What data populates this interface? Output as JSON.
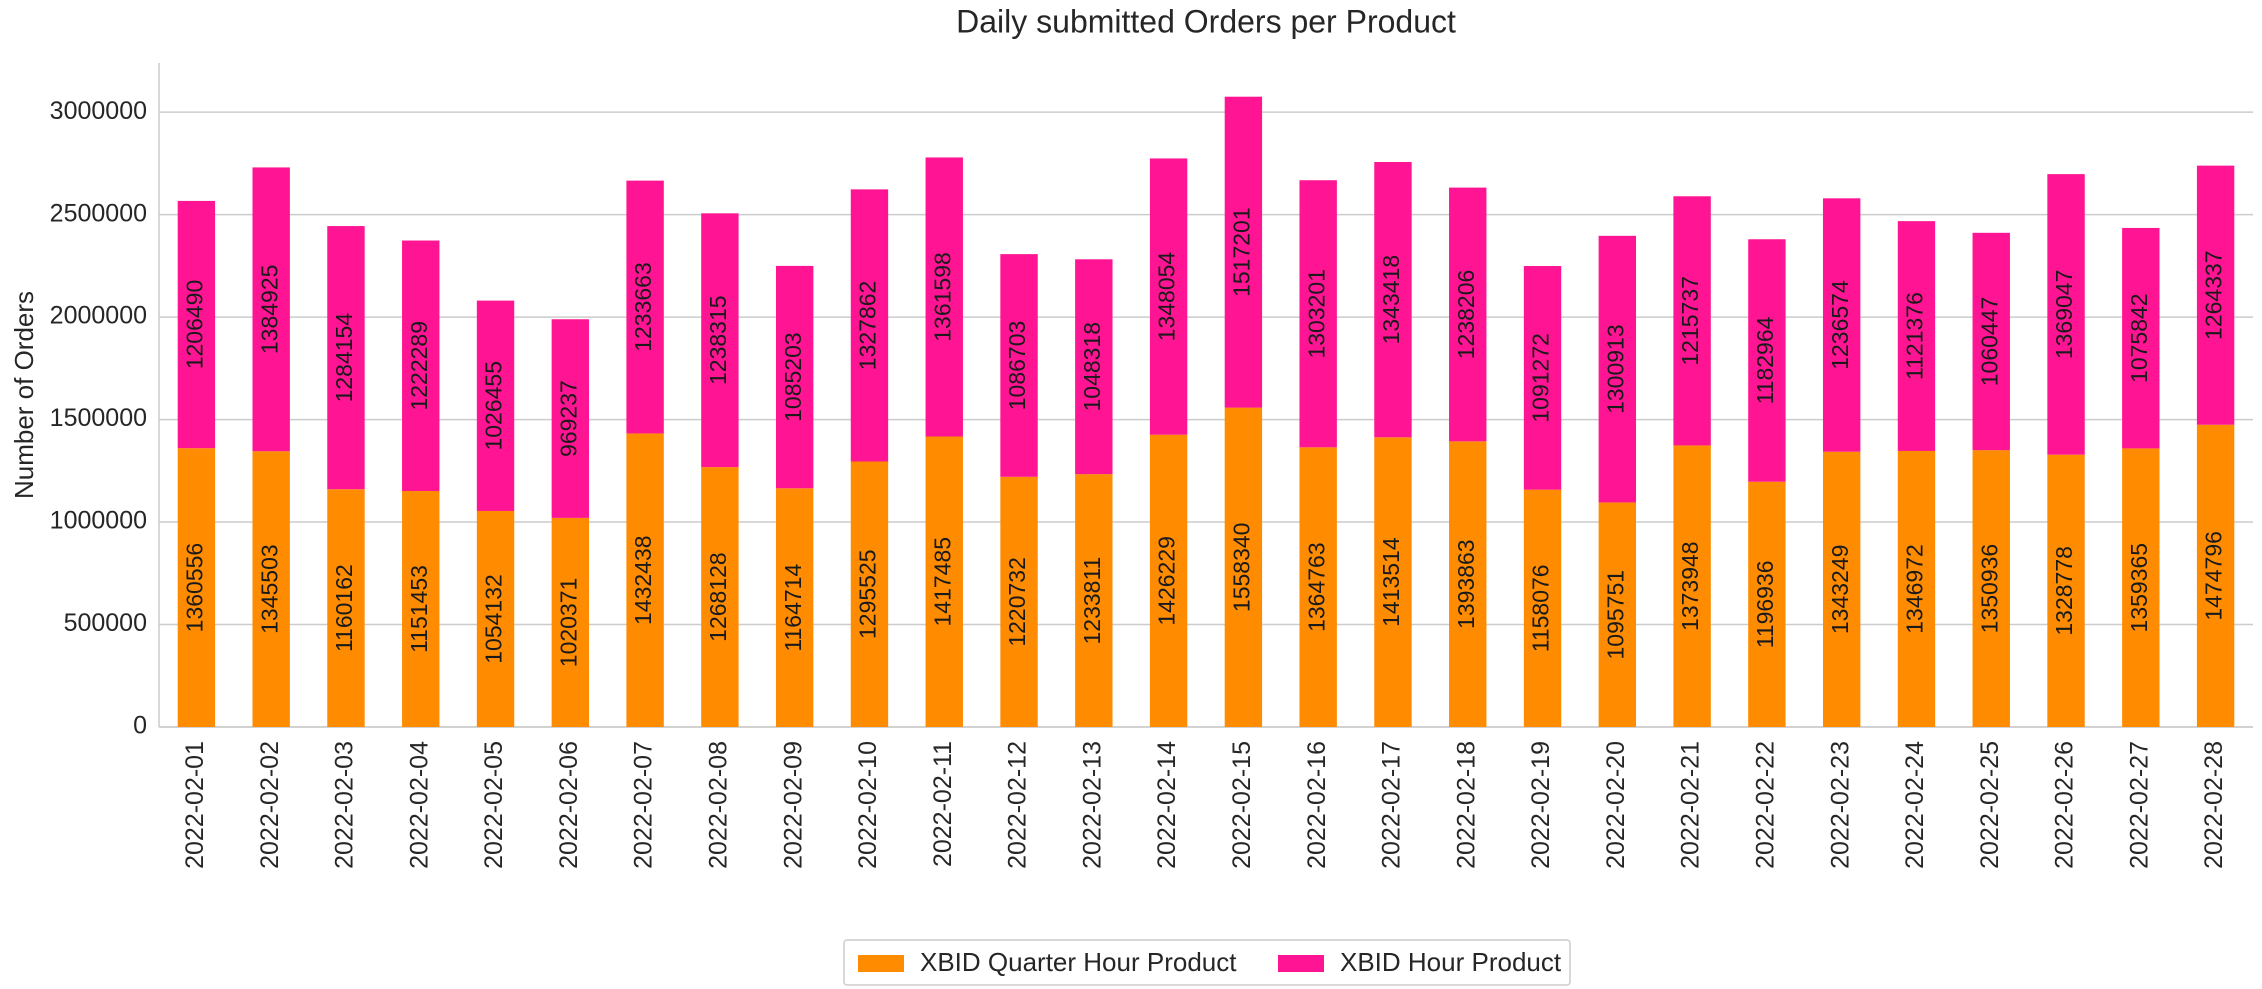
{
  "chart_data": {
    "type": "bar",
    "stacked": true,
    "title": "Daily submitted Orders per Product",
    "ylabel": "Number of Orders",
    "categories": [
      "2022-02-01",
      "2022-02-02",
      "2022-02-03",
      "2022-02-04",
      "2022-02-05",
      "2022-02-06",
      "2022-02-07",
      "2022-02-08",
      "2022-02-09",
      "2022-02-10",
      "2022-02-11",
      "2022-02-12",
      "2022-02-13",
      "2022-02-14",
      "2022-02-15",
      "2022-02-16",
      "2022-02-17",
      "2022-02-18",
      "2022-02-19",
      "2022-02-20",
      "2022-02-21",
      "2022-02-22",
      "2022-02-23",
      "2022-02-24",
      "2022-02-25",
      "2022-02-26",
      "2022-02-27",
      "2022-02-28"
    ],
    "series": [
      {
        "name": "XBID Quarter Hour Product",
        "color": "#ff8c00",
        "values": [
          1360556,
          1345503,
          1160162,
          1151453,
          1054132,
          1020371,
          1432438,
          1268128,
          1164714,
          1295525,
          1417485,
          1220732,
          1233811,
          1426229,
          1558340,
          1364763,
          1413514,
          1393863,
          1158076,
          1095751,
          1373948,
          1196936,
          1343249,
          1346972,
          1350936,
          1328778,
          1359365,
          1474796
        ]
      },
      {
        "name": "XBID Hour Product",
        "color": "#ff1493",
        "values": [
          1206490,
          1384925,
          1284154,
          1222289,
          1026455,
          969237,
          1233663,
          1238315,
          1085203,
          1327862,
          1361598,
          1086703,
          1048318,
          1348054,
          1517201,
          1303201,
          1343418,
          1238206,
          1091272,
          1300913,
          1215737,
          1182964,
          1236574,
          1121376,
          1060447,
          1369047,
          1075842,
          1264337
        ]
      }
    ],
    "ylim": [
      0,
      3240000
    ],
    "yticks": [
      0,
      500000,
      1000000,
      1500000,
      2000000,
      2500000,
      3000000
    ],
    "grid": true,
    "legend": "lower center"
  }
}
